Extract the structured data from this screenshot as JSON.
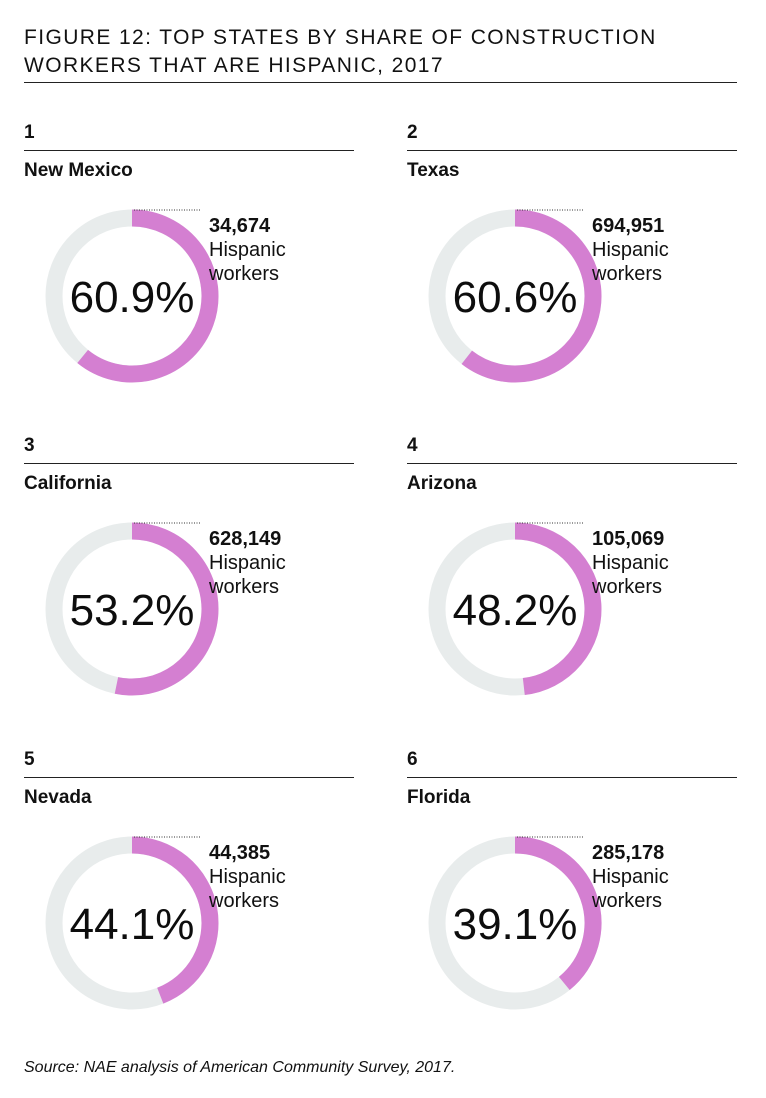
{
  "title": "FIGURE 12: TOP STATES BY SHARE OF CONSTRUCTION WORKERS THAT ARE HISPANIC, 2017",
  "source": "Source: NAE analysis of American Community Survey, 2017.",
  "colors": {
    "arc": "#d47fd1",
    "track": "#e8ecec"
  },
  "chart_data": {
    "type": "pie",
    "title": "FIGURE 12: TOP STATES BY SHARE OF CONSTRUCTION WORKERS THAT ARE HISPANIC, 2017",
    "items": [
      {
        "rank": "1",
        "state": "New Mexico",
        "share": 60.9,
        "share_label": "60.9%",
        "workers": "34,674",
        "workers_label_line1": "Hispanic",
        "workers_label_line2": "workers"
      },
      {
        "rank": "2",
        "state": "Texas",
        "share": 60.6,
        "share_label": "60.6%",
        "workers": "694,951",
        "workers_label_line1": "Hispanic",
        "workers_label_line2": "workers"
      },
      {
        "rank": "3",
        "state": "California",
        "share": 53.2,
        "share_label": "53.2%",
        "workers": "628,149",
        "workers_label_line1": "Hispanic",
        "workers_label_line2": "workers"
      },
      {
        "rank": "4",
        "state": "Arizona",
        "share": 48.2,
        "share_label": "48.2%",
        "workers": "105,069",
        "workers_label_line1": "Hispanic",
        "workers_label_line2": "workers"
      },
      {
        "rank": "5",
        "state": "Nevada",
        "share": 44.1,
        "share_label": "44.1%",
        "workers": "44,385",
        "workers_label_line1": "Hispanic",
        "workers_label_line2": "workers"
      },
      {
        "rank": "6",
        "state": "Florida",
        "share": 39.1,
        "share_label": "39.1%",
        "workers": "285,178",
        "workers_label_line1": "Hispanic",
        "workers_label_line2": "workers"
      }
    ]
  }
}
